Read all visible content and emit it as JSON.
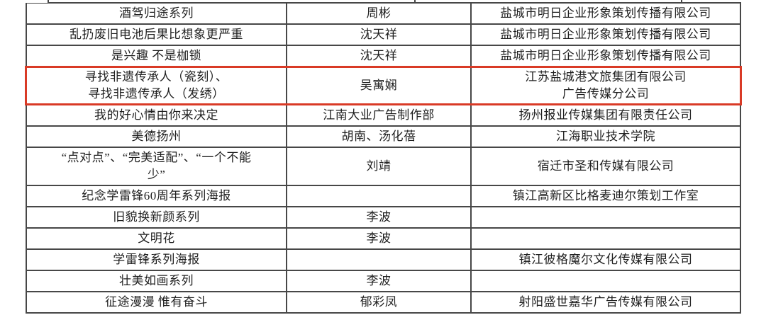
{
  "colors": {
    "background": "#ffffff",
    "table_border": "#474747",
    "text": "#1f1f1f",
    "highlight_red": "#d93a26"
  },
  "table": {
    "rows": [
      {
        "title": "酒驾归途系列",
        "author": "周彬",
        "company": "盐城市明日企业形象策划传播有限公司",
        "highlighted": false
      },
      {
        "title": "乱扔废旧电池后果比想象更严重",
        "author": "沈天祥",
        "company": "盐城市明日企业形象策划传播有限公司",
        "highlighted": false
      },
      {
        "title": "是兴趣 不是枷锁",
        "author": "沈天祥",
        "company": "盐城市明日企业形象策划传播有限公司",
        "highlighted": false
      },
      {
        "title": "寻找非遗传承人（瓷刻）、\n寻找非遗传承人（发绣）",
        "author": "吴寓娴",
        "company": "江苏盐城港文旅集团有限公司\n广告传媒分公司",
        "highlighted": true
      },
      {
        "title": "我的好心情由你来决定",
        "author": "江南大业广告制作部",
        "company": "扬州报业传媒集团有限责任公司",
        "highlighted": false
      },
      {
        "title": "美德扬州",
        "author": "胡南、汤化蓓",
        "company": "江海职业技术学院",
        "highlighted": false
      },
      {
        "title": "“点对点”、“完美适配”、“一个不能\n少”",
        "author": "刘靖",
        "company": "宿迁市圣和传媒有限公司",
        "highlighted": false
      },
      {
        "title": "纪念学雷锋60周年系列海报",
        "author": "",
        "company": "镇江高新区比格麦迪尔策划工作室",
        "highlighted": false
      },
      {
        "title": "旧貌换新颜系列",
        "author": "李波",
        "company": "",
        "highlighted": false
      },
      {
        "title": "文明花",
        "author": "李波",
        "company": "",
        "highlighted": false
      },
      {
        "title": "学雷锋系列海报",
        "author": "",
        "company": "镇江彼格魔尔文化传媒有限公司",
        "highlighted": false
      },
      {
        "title": "壮美如画系列",
        "author": "李波",
        "company": "",
        "highlighted": false
      },
      {
        "title": "征途漫漫 惟有奋斗",
        "author": "郁彩凤",
        "company": "射阳盛世嘉华广告传媒有限公司",
        "highlighted": false
      }
    ]
  }
}
